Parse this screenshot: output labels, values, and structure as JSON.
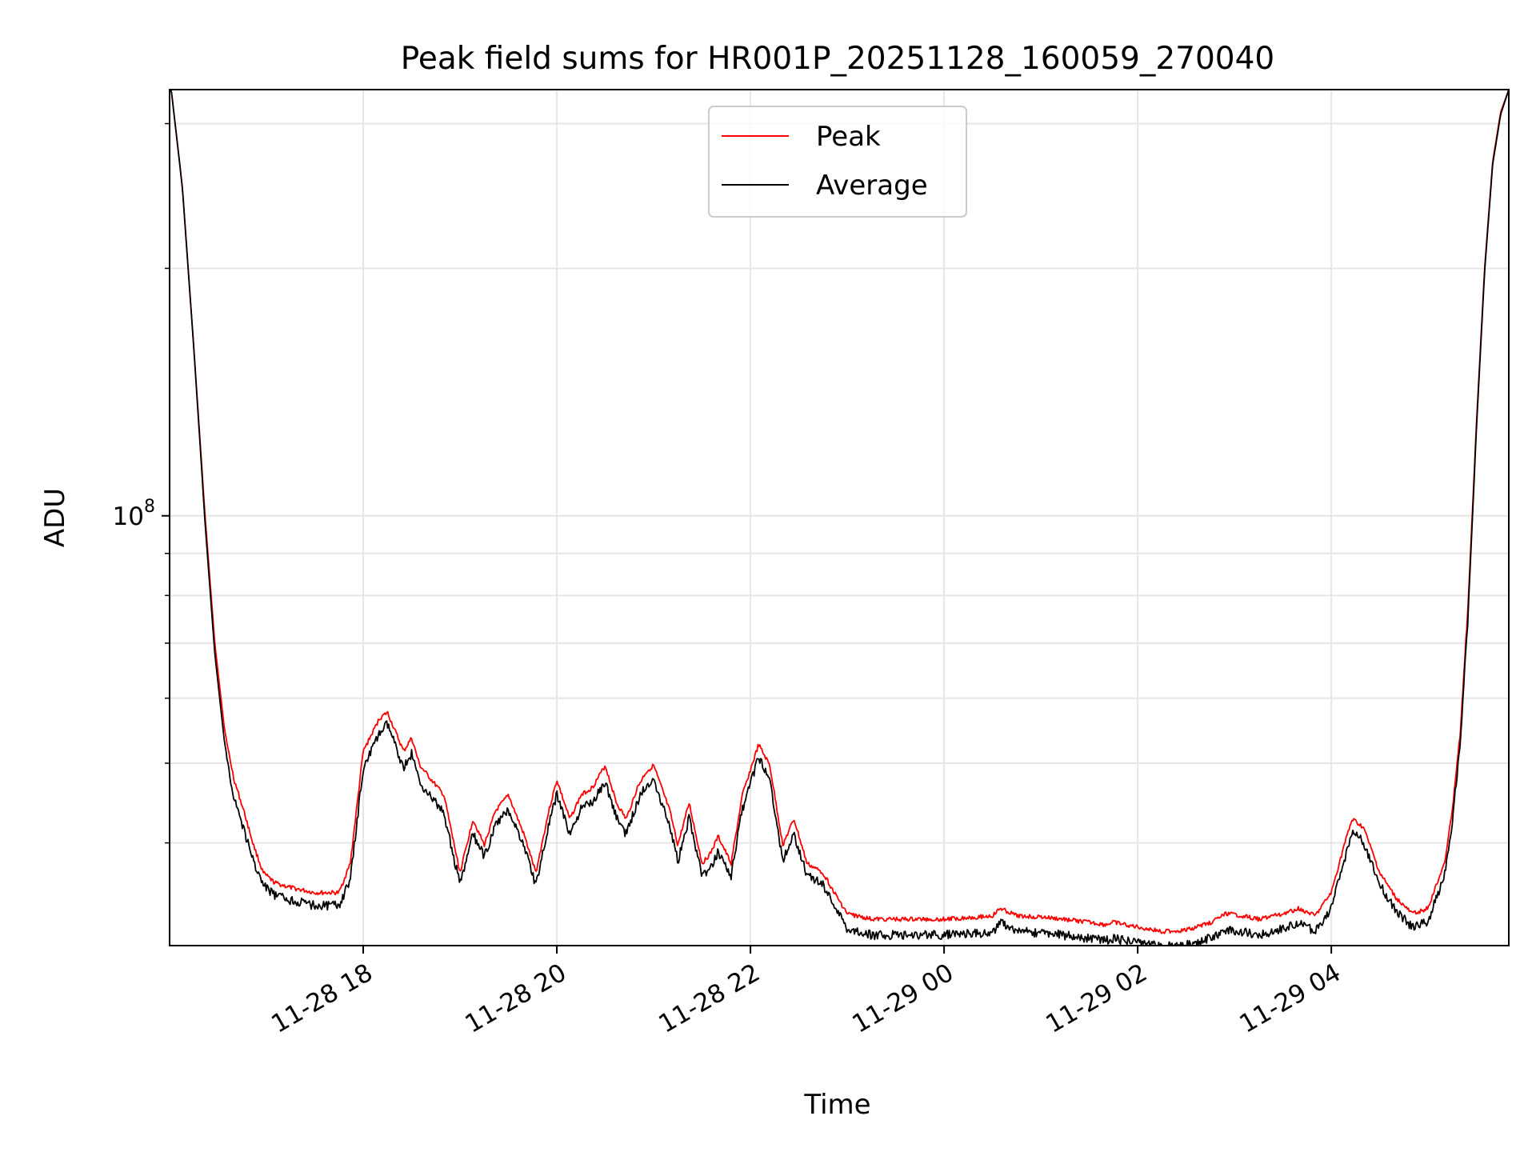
{
  "chart_data": {
    "type": "line",
    "title": "Peak field sums for HR001P_20251128_160059_270040",
    "xlabel": "Time",
    "ylabel": "ADU",
    "yscale": "log",
    "xlim": [
      "2025-11-28 16:00",
      "2025-11-29 05:50"
    ],
    "ylim": [
      30000000,
      330000000
    ],
    "x_ticks": [
      "11-28 18",
      "11-28 20",
      "11-28 22",
      "11-29 00",
      "11-29 02",
      "11-29 04"
    ],
    "y_ticks": [
      {
        "label_base": "10",
        "label_exp": "8",
        "value": 100000000
      }
    ],
    "grid": true,
    "legend": {
      "placement": "upper center"
    },
    "series": [
      {
        "name": "Peak",
        "color": "#ff0000",
        "x": [
          "2025-11-28 16:01",
          "2025-11-28 16:08",
          "2025-11-28 16:15",
          "2025-11-28 16:22",
          "2025-11-28 16:28",
          "2025-11-28 16:34",
          "2025-11-28 16:40",
          "2025-11-28 16:46",
          "2025-11-28 16:52",
          "2025-11-28 16:58",
          "2025-11-28 17:05",
          "2025-11-28 17:15",
          "2025-11-28 17:30",
          "2025-11-28 17:45",
          "2025-11-28 17:52",
          "2025-11-28 18:00",
          "2025-11-28 18:10",
          "2025-11-28 18:15",
          "2025-11-28 18:25",
          "2025-11-28 18:30",
          "2025-11-28 18:35",
          "2025-11-28 18:50",
          "2025-11-28 19:00",
          "2025-11-28 19:08",
          "2025-11-28 19:15",
          "2025-11-28 19:22",
          "2025-11-28 19:30",
          "2025-11-28 19:40",
          "2025-11-28 19:47",
          "2025-11-28 19:55",
          "2025-11-28 20:00",
          "2025-11-28 20:08",
          "2025-11-28 20:15",
          "2025-11-28 20:22",
          "2025-11-28 20:30",
          "2025-11-28 20:37",
          "2025-11-28 20:43",
          "2025-11-28 20:50",
          "2025-11-28 20:55",
          "2025-11-28 21:00",
          "2025-11-28 21:10",
          "2025-11-28 21:15",
          "2025-11-28 21:22",
          "2025-11-28 21:30",
          "2025-11-28 21:35",
          "2025-11-28 21:40",
          "2025-11-28 21:48",
          "2025-11-28 21:55",
          "2025-11-28 22:05",
          "2025-11-28 22:12",
          "2025-11-28 22:20",
          "2025-11-28 22:27",
          "2025-11-28 22:35",
          "2025-11-28 22:45",
          "2025-11-28 22:52",
          "2025-11-28 23:00",
          "2025-11-28 23:15",
          "2025-11-28 23:30",
          "2025-11-28 23:45",
          "2025-11-29 00:00",
          "2025-11-29 00:30",
          "2025-11-29 00:35",
          "2025-11-29 00:45",
          "2025-11-29 01:00",
          "2025-11-29 01:20",
          "2025-11-29 01:40",
          "2025-11-29 01:45",
          "2025-11-29 02:00",
          "2025-11-29 02:15",
          "2025-11-29 02:30",
          "2025-11-29 02:45",
          "2025-11-29 02:55",
          "2025-11-29 03:05",
          "2025-11-29 03:15",
          "2025-11-29 03:30",
          "2025-11-29 03:40",
          "2025-11-29 03:50",
          "2025-11-29 04:00",
          "2025-11-29 04:08",
          "2025-11-29 04:13",
          "2025-11-29 04:20",
          "2025-11-29 04:30",
          "2025-11-29 04:40",
          "2025-11-29 04:50",
          "2025-11-29 05:00",
          "2025-11-29 05:10",
          "2025-11-29 05:15",
          "2025-11-29 05:20",
          "2025-11-29 05:25",
          "2025-11-29 05:30",
          "2025-11-29 05:35",
          "2025-11-29 05:40",
          "2025-11-29 05:45",
          "2025-11-29 05:50"
        ],
        "y": [
          330000000,
          250000000,
          160000000,
          100000000,
          70000000,
          55000000,
          48000000,
          44000000,
          40000000,
          37000000,
          36000000,
          35500000,
          35000000,
          35000000,
          38000000,
          52000000,
          57000000,
          58000000,
          52000000,
          54000000,
          50000000,
          46000000,
          37000000,
          43000000,
          40000000,
          44000000,
          46000000,
          41000000,
          37000000,
          44000000,
          48000000,
          43000000,
          46000000,
          47000000,
          50000000,
          45000000,
          43000000,
          47000000,
          49000000,
          50000000,
          44000000,
          40000000,
          45000000,
          38000000,
          39000000,
          41000000,
          38000000,
          46000000,
          53000000,
          50000000,
          40000000,
          43000000,
          38000000,
          37000000,
          35000000,
          33000000,
          32500000,
          32500000,
          32500000,
          32500000,
          32800000,
          33500000,
          32800000,
          32700000,
          32400000,
          32000000,
          32200000,
          31800000,
          31400000,
          31500000,
          32200000,
          33000000,
          32800000,
          32500000,
          33000000,
          33500000,
          32800000,
          35000000,
          40000000,
          43000000,
          42000000,
          37000000,
          34500000,
          33000000,
          33500000,
          38000000,
          44000000,
          55000000,
          80000000,
          130000000,
          200000000,
          270000000,
          310000000,
          330000000
        ]
      },
      {
        "name": "Average",
        "color": "#000000",
        "x": [
          "2025-11-28 16:01",
          "2025-11-28 16:08",
          "2025-11-28 16:15",
          "2025-11-28 16:22",
          "2025-11-28 16:28",
          "2025-11-28 16:34",
          "2025-11-28 16:40",
          "2025-11-28 16:46",
          "2025-11-28 16:52",
          "2025-11-28 16:58",
          "2025-11-28 17:05",
          "2025-11-28 17:15",
          "2025-11-28 17:30",
          "2025-11-28 17:45",
          "2025-11-28 17:52",
          "2025-11-28 18:00",
          "2025-11-28 18:10",
          "2025-11-28 18:15",
          "2025-11-28 18:25",
          "2025-11-28 18:30",
          "2025-11-28 18:35",
          "2025-11-28 18:50",
          "2025-11-28 19:00",
          "2025-11-28 19:08",
          "2025-11-28 19:15",
          "2025-11-28 19:22",
          "2025-11-28 19:30",
          "2025-11-28 19:40",
          "2025-11-28 19:47",
          "2025-11-28 19:55",
          "2025-11-28 20:00",
          "2025-11-28 20:08",
          "2025-11-28 20:15",
          "2025-11-28 20:22",
          "2025-11-28 20:30",
          "2025-11-28 20:37",
          "2025-11-28 20:43",
          "2025-11-28 20:50",
          "2025-11-28 20:55",
          "2025-11-28 21:00",
          "2025-11-28 21:10",
          "2025-11-28 21:15",
          "2025-11-28 21:22",
          "2025-11-28 21:30",
          "2025-11-28 21:35",
          "2025-11-28 21:40",
          "2025-11-28 21:48",
          "2025-11-28 21:55",
          "2025-11-28 22:05",
          "2025-11-28 22:12",
          "2025-11-28 22:20",
          "2025-11-28 22:27",
          "2025-11-28 22:35",
          "2025-11-28 22:45",
          "2025-11-28 22:52",
          "2025-11-28 23:00",
          "2025-11-28 23:15",
          "2025-11-28 23:30",
          "2025-11-28 23:45",
          "2025-11-29 00:00",
          "2025-11-29 00:30",
          "2025-11-29 00:35",
          "2025-11-29 00:45",
          "2025-11-29 01:00",
          "2025-11-29 01:20",
          "2025-11-29 01:40",
          "2025-11-29 01:45",
          "2025-11-29 02:00",
          "2025-11-29 02:15",
          "2025-11-29 02:30",
          "2025-11-29 02:45",
          "2025-11-29 02:55",
          "2025-11-29 03:05",
          "2025-11-29 03:15",
          "2025-11-29 03:30",
          "2025-11-29 03:40",
          "2025-11-29 03:50",
          "2025-11-29 04:00",
          "2025-11-29 04:08",
          "2025-11-29 04:13",
          "2025-11-29 04:20",
          "2025-11-29 04:30",
          "2025-11-29 04:40",
          "2025-11-29 04:50",
          "2025-11-29 05:00",
          "2025-11-29 05:10",
          "2025-11-29 05:15",
          "2025-11-29 05:20",
          "2025-11-29 05:25",
          "2025-11-29 05:30",
          "2025-11-29 05:35",
          "2025-11-29 05:40",
          "2025-11-29 05:45",
          "2025-11-29 05:50"
        ],
        "y": [
          330000000,
          250000000,
          160000000,
          98000000,
          68000000,
          53000000,
          46000000,
          42000000,
          38500000,
          36000000,
          35000000,
          34500000,
          34000000,
          34000000,
          36500000,
          50000000,
          55000000,
          56500000,
          50000000,
          52000000,
          48000000,
          44000000,
          36000000,
          41500000,
          39000000,
          42500000,
          44500000,
          40000000,
          36000000,
          42500000,
          46500000,
          41500000,
          44500000,
          45500000,
          48000000,
          43500000,
          41500000,
          45500000,
          47500000,
          48500000,
          42500000,
          38500000,
          43500000,
          37000000,
          37500000,
          39500000,
          37000000,
          44500000,
          51500000,
          48500000,
          38500000,
          41500000,
          37000000,
          36000000,
          34000000,
          31800000,
          31300000,
          31300000,
          31300000,
          31300000,
          31500000,
          32400000,
          31600000,
          31500000,
          31200000,
          30800000,
          31000000,
          30600000,
          30300000,
          30400000,
          31000000,
          31800000,
          31600000,
          31300000,
          31800000,
          32400000,
          31600000,
          33800000,
          38500000,
          42000000,
          40500000,
          36000000,
          33500000,
          32000000,
          32500000,
          37000000,
          43000000,
          54000000,
          78000000,
          128000000,
          198000000,
          268000000,
          308000000,
          330000000
        ]
      }
    ]
  }
}
